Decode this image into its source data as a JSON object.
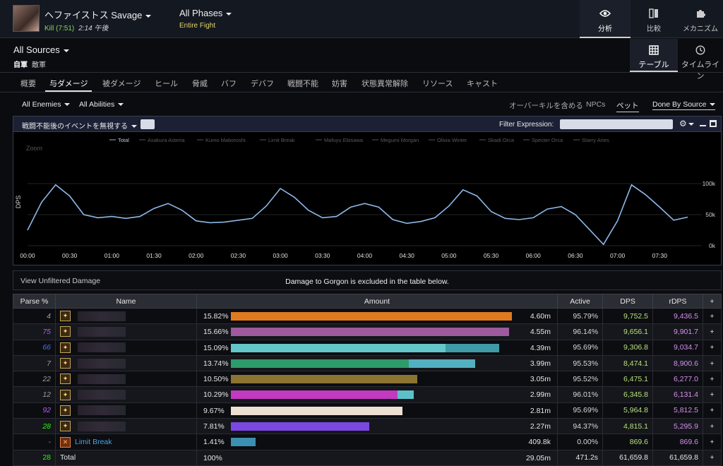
{
  "header": {
    "boss_name": "ヘファイストス Savage",
    "kill_label": "Kill (7:51)",
    "time_label": "2:14 午後",
    "phase_title": "All Phases",
    "phase_sub": "Entire Fight",
    "tabs": [
      {
        "label": "分析",
        "icon": "eye-icon"
      },
      {
        "label": "比較",
        "icon": "compare-icon"
      },
      {
        "label": "メカニズム",
        "icon": "puzzle-icon"
      }
    ]
  },
  "sources": {
    "title": "All Sources",
    "sub_bold": "自軍",
    "sub": "敵軍",
    "views": [
      {
        "label": "テーブル",
        "icon": "grid-icon"
      },
      {
        "label": "タイムライン",
        "icon": "clock-icon"
      }
    ]
  },
  "nav_tabs": [
    "概要",
    "与ダメージ",
    "被ダメージ",
    "ヒール",
    "脅威",
    "バフ",
    "デバフ",
    "戦闘不能",
    "妨害",
    "状態異常解除",
    "リソース",
    "キャスト"
  ],
  "filters": {
    "enemies": "All Enemies",
    "abilities": "All Abilities",
    "overkill": "オーバーキルを含める",
    "npcs": "NPCs",
    "pets": "ペット",
    "done_by": "Done By Source"
  },
  "graph_head": {
    "toggle": "戦闘不能後のイベントを無視する",
    "filter_label": "Filter Expression:",
    "filter_value": ""
  },
  "chart_data": {
    "type": "line",
    "ylabel": "DPS",
    "zoom_label": "Zoom",
    "legend": [
      "Total",
      "Asakura Asteria",
      "Kumo Maboroshi",
      "Limit Break",
      "Mafuyu Ebisawa",
      "Megumi Morgan",
      "Olivia Winter",
      "Skadi Orca",
      "Specter Orca",
      "Starry Aries"
    ],
    "y_ticks": [
      "100k",
      "50k",
      "0k"
    ],
    "ylim": [
      0,
      100000
    ],
    "x_ticks": [
      "00:00",
      "00:30",
      "01:00",
      "01:30",
      "02:00",
      "02:30",
      "03:00",
      "03:30",
      "04:00",
      "04:30",
      "05:00",
      "05:30",
      "06:00",
      "06:30",
      "07:00",
      "07:30"
    ],
    "x": [
      0,
      10,
      20,
      30,
      40,
      50,
      60,
      70,
      80,
      90,
      100,
      110,
      120,
      130,
      140,
      150,
      160,
      170,
      180,
      190,
      200,
      210,
      220,
      230,
      240,
      250,
      260,
      270,
      280,
      290,
      300,
      310,
      320,
      330,
      340,
      350,
      360,
      370,
      380,
      390,
      400,
      410,
      420,
      430,
      440,
      450,
      460,
      470
    ],
    "values": [
      25000,
      70000,
      98000,
      80000,
      50000,
      45000,
      47000,
      44000,
      47000,
      60000,
      68000,
      57000,
      40000,
      37000,
      38000,
      41000,
      44000,
      64000,
      92000,
      78000,
      57000,
      45000,
      47000,
      62000,
      68000,
      62000,
      42000,
      36000,
      39000,
      45000,
      64000,
      90000,
      80000,
      55000,
      44000,
      42000,
      45000,
      59000,
      63000,
      50000,
      26000,
      2000,
      40000,
      98000,
      82000,
      62000,
      41000,
      46000
    ]
  },
  "unfiltered": {
    "link": "View Unfiltered Damage",
    "note": "Damage to Gorgon is excluded in the table below."
  },
  "table": {
    "headers": [
      "Parse %",
      "Name",
      "Amount",
      "Active",
      "DPS",
      "rDPS",
      "+"
    ],
    "rows": [
      {
        "parse": "4",
        "parse_color": "#9a9a9a",
        "icon": "job-icon",
        "name": "",
        "pct": "15.82%",
        "bar": 0.1582,
        "bar2": 0,
        "color": "#e07a1e",
        "color2": "",
        "amount": "4.60m",
        "active": "95.79%",
        "dps": "9,752.5",
        "rdps": "9,436.5"
      },
      {
        "parse": "75",
        "parse_color": "#b25cf0",
        "icon": "job-icon",
        "name": "",
        "pct": "15.66%",
        "bar": 0.1566,
        "bar2": 0,
        "color": "#9d5a9c",
        "color2": "",
        "amount": "4.55m",
        "active": "96.14%",
        "dps": "9,656.1",
        "rdps": "9,901.7"
      },
      {
        "parse": "66",
        "parse_color": "#4a6df0",
        "icon": "job-icon",
        "name": "",
        "pct": "15.09%",
        "bar": 0.121,
        "bar2": 0.0299,
        "color": "#63c7c9",
        "color2": "#3f9aa8",
        "amount": "4.39m",
        "active": "95.69%",
        "dps": "9,306.8",
        "rdps": "9,034.7"
      },
      {
        "parse": "7",
        "parse_color": "#9a9a9a",
        "icon": "job-icon",
        "name": "",
        "pct": "13.74%",
        "bar": 0.1,
        "bar2": 0.0374,
        "color": "#2e9a6a",
        "color2": "#52b0c0",
        "amount": "3.99m",
        "active": "95.53%",
        "dps": "8,474.1",
        "rdps": "8,900.6"
      },
      {
        "parse": "22",
        "parse_color": "#9a9a9a",
        "icon": "job-icon",
        "name": "",
        "pct": "10.50%",
        "bar": 0.105,
        "bar2": 0,
        "color": "#8c7432",
        "color2": "",
        "amount": "3.05m",
        "active": "95.52%",
        "dps": "6,475.1",
        "rdps": "6,277.0"
      },
      {
        "parse": "12",
        "parse_color": "#9a9a9a",
        "icon": "job-icon",
        "name": "",
        "pct": "10.29%",
        "bar": 0.094,
        "bar2": 0.0089,
        "color": "#c23ac0",
        "color2": "#5cc0c8",
        "amount": "2.99m",
        "active": "96.01%",
        "dps": "6,345.8",
        "rdps": "6,131.4"
      },
      {
        "parse": "92",
        "parse_color": "#b25cf0",
        "icon": "job-icon",
        "name": "",
        "pct": "9.67%",
        "bar": 0.0967,
        "bar2": 0,
        "color": "#ece0d2",
        "color2": "",
        "amount": "2.81m",
        "active": "95.69%",
        "dps": "5,964.8",
        "rdps": "5,812.5"
      },
      {
        "parse": "28",
        "parse_color": "#1eff00",
        "icon": "job-icon",
        "name": "",
        "pct": "7.81%",
        "bar": 0.0781,
        "bar2": 0,
        "color": "#7a48e0",
        "color2": "",
        "amount": "2.27m",
        "active": "94.37%",
        "dps": "4,815.1",
        "rdps": "5,295.9"
      },
      {
        "parse": "-",
        "parse_color": "#9a9a9a",
        "icon": "limit-break-icon",
        "name": "Limit Break",
        "pct": "1.41%",
        "bar": 0.0141,
        "bar2": 0,
        "color": "#3b8fb0",
        "color2": "",
        "amount": "409.8k",
        "active": "0.00%",
        "dps": "869.6",
        "rdps": "869.6"
      },
      {
        "parse": "28",
        "parse_color": "#1eff00",
        "icon": "",
        "name": "Total",
        "pct": "100%",
        "bar": 0,
        "bar2": 0,
        "color": "",
        "color2": "",
        "amount": "29.05m",
        "active": "471.2s",
        "dps": "61,659.8",
        "rdps": "61,659.8"
      }
    ]
  }
}
